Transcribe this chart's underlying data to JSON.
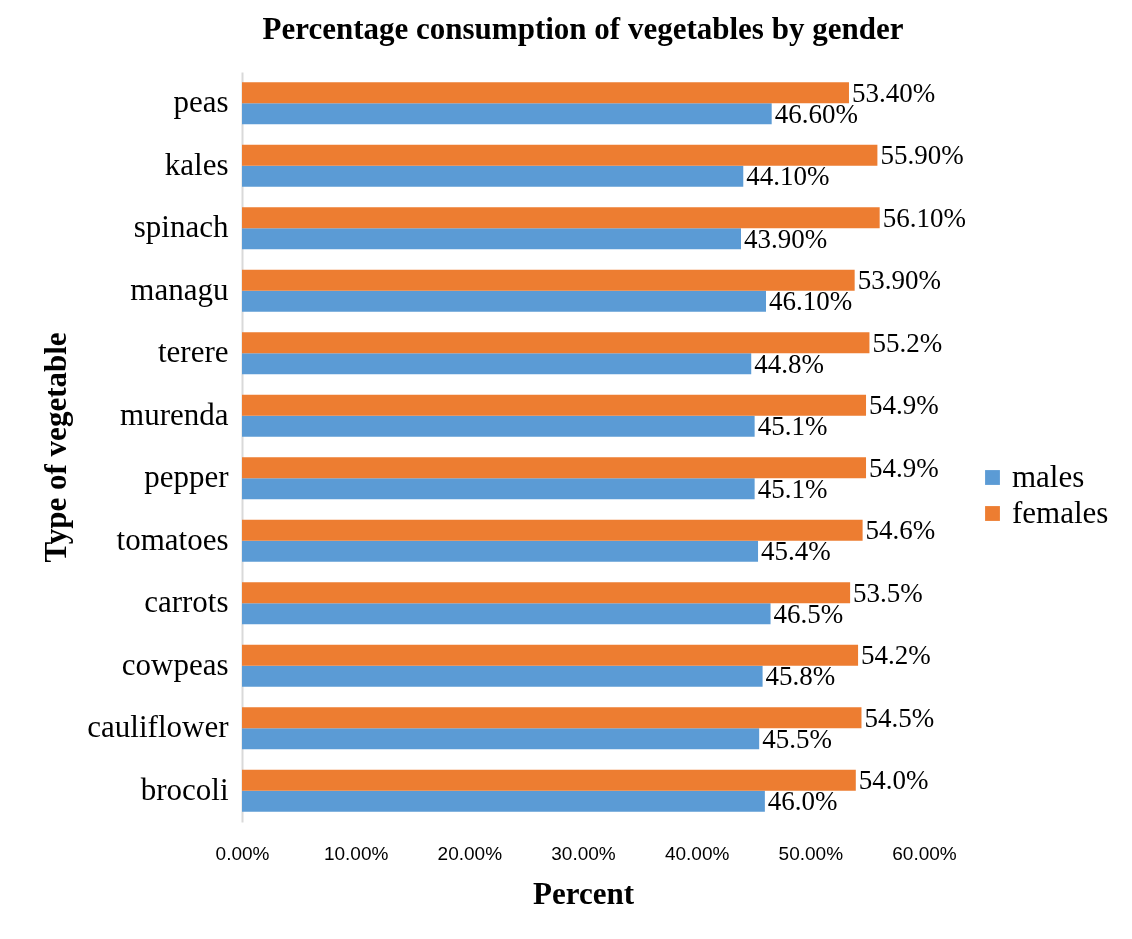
{
  "chart_data": {
    "type": "bar",
    "orientation": "horizontal",
    "title": "Percentage consumption of vegetables by gender",
    "xlabel": "Percent",
    "ylabel": "Type of vegetable",
    "categories": [
      "peas",
      "kales",
      "spinach",
      "managu",
      "terere",
      "murenda",
      "pepper",
      "tomatoes",
      "carrots",
      "cowpeas",
      "cauliflower",
      "brocoli"
    ],
    "series": [
      {
        "name": "males",
        "color": "#5b9bd5",
        "values": [
          46.6,
          44.1,
          43.9,
          46.1,
          44.8,
          45.1,
          45.1,
          45.4,
          46.5,
          45.8,
          45.5,
          46.0
        ],
        "value_labels": [
          "46.60%",
          "44.10%",
          "43.90%",
          "46.10%",
          "44.8%",
          "45.1%",
          "45.1%",
          "45.4%",
          "46.5%",
          "45.8%",
          "45.5%",
          "46.0%"
        ]
      },
      {
        "name": "females",
        "color": "#ed7d31",
        "values": [
          53.4,
          55.9,
          56.1,
          53.9,
          55.2,
          54.9,
          54.9,
          54.6,
          53.5,
          54.2,
          54.5,
          54.0
        ],
        "value_labels": [
          "53.40%",
          "55.90%",
          "56.10%",
          "53.90%",
          "55.2%",
          "54.9%",
          "54.9%",
          "54.6%",
          "53.5%",
          "54.2%",
          "54.5%",
          "54.0%"
        ]
      }
    ],
    "xlim": [
      0,
      60
    ],
    "xticks": [
      {
        "value": 0,
        "label": "0.00%"
      },
      {
        "value": 10,
        "label": "10.00%"
      },
      {
        "value": 20,
        "label": "20.00%"
      },
      {
        "value": 30,
        "label": "30.00%"
      },
      {
        "value": 40,
        "label": "40.00%"
      },
      {
        "value": 50,
        "label": "50.00%"
      },
      {
        "value": 60,
        "label": "60.00%"
      }
    ],
    "grid": false,
    "legend": "right"
  }
}
